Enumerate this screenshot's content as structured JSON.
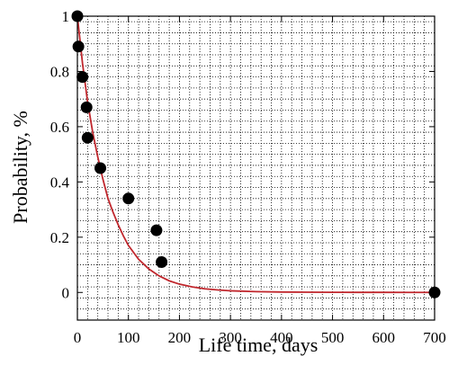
{
  "chart_data": {
    "type": "scatter",
    "xlabel": "Life time, days",
    "ylabel": "Probability, %",
    "xlim": [
      0,
      700
    ],
    "ylim": [
      -0.1,
      1
    ],
    "x_ticks": [
      0,
      100,
      200,
      300,
      400,
      500,
      600,
      700
    ],
    "y_ticks": [
      0,
      0.2,
      0.4,
      0.6,
      0.8,
      1
    ],
    "x_tick_labels": [
      "0",
      "100",
      "200",
      "300",
      "400",
      "500",
      "600",
      "700"
    ],
    "y_tick_labels": [
      "0",
      "0.2",
      "0.4",
      "0.6",
      "0.8",
      "1"
    ],
    "x_minor_step": 20,
    "y_minor_step": 0.04,
    "grid": true,
    "grid_style": "dotted",
    "series": [
      {
        "type": "scatter",
        "color": "#000000",
        "x": [
          0,
          2,
          10,
          18,
          20,
          45,
          100,
          155,
          165,
          700
        ],
        "y": [
          1,
          0.89,
          0.78,
          0.67,
          0.56,
          0.45,
          0.34,
          0.225,
          0.11,
          0
        ]
      },
      {
        "type": "line",
        "color": "#c0272d",
        "x": [
          0,
          10,
          20,
          30,
          40,
          50,
          60,
          70,
          80,
          90,
          100,
          120,
          140,
          160,
          180,
          200,
          225,
          250,
          275,
          300,
          350,
          400,
          450,
          500,
          550,
          600,
          650,
          700
        ],
        "y": [
          1,
          0.83,
          0.69,
          0.58,
          0.49,
          0.41,
          0.34,
          0.29,
          0.245,
          0.205,
          0.17,
          0.12,
          0.085,
          0.06,
          0.042,
          0.03,
          0.02,
          0.013,
          0.009,
          0.006,
          0.003,
          0.0015,
          0.001,
          0.0005,
          0.0003,
          0.0002,
          0.0001,
          0
        ]
      }
    ]
  }
}
